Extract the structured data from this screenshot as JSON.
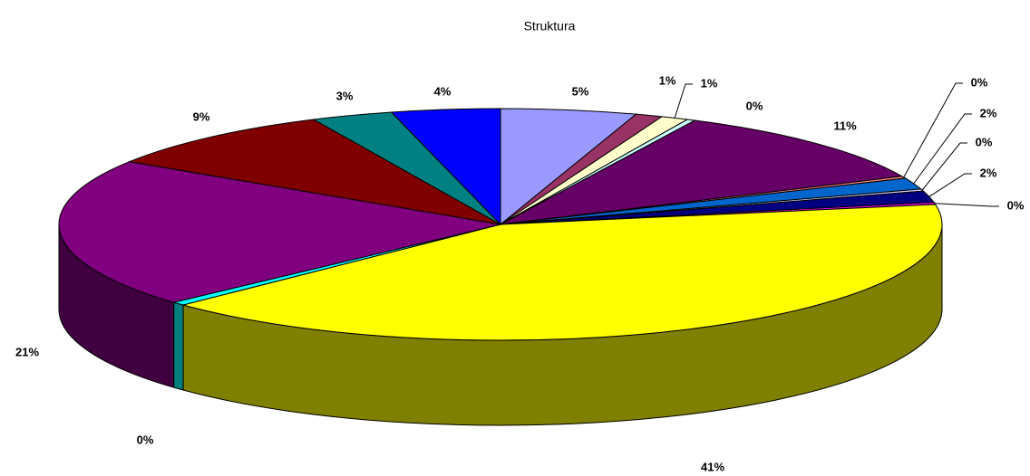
{
  "chart_data": {
    "type": "pie3d",
    "title": "Struktura",
    "values": [
      5,
      1,
      1,
      0.3,
      11,
      0.3,
      1.6,
      0.3,
      1.6,
      0.3,
      40.8,
      0.5,
      21,
      9,
      3,
      4
    ],
    "value_labels": [
      "5%",
      "1%",
      "1%",
      "0%",
      "11%",
      "0%",
      "2%",
      "0%",
      "2%",
      "0%",
      "41%",
      "0%",
      "21%",
      "9%",
      "3%",
      "4%"
    ],
    "colors": [
      "#9999ff",
      "#993366",
      "#ffffcc",
      "#ccffff",
      "#660066",
      "#ff8080",
      "#0066cc",
      "#ccccff",
      "#000080",
      "#ff00ff",
      "#ffff00",
      "#00ffff",
      "#800080",
      "#800000",
      "#008080",
      "#0000ff"
    ]
  }
}
